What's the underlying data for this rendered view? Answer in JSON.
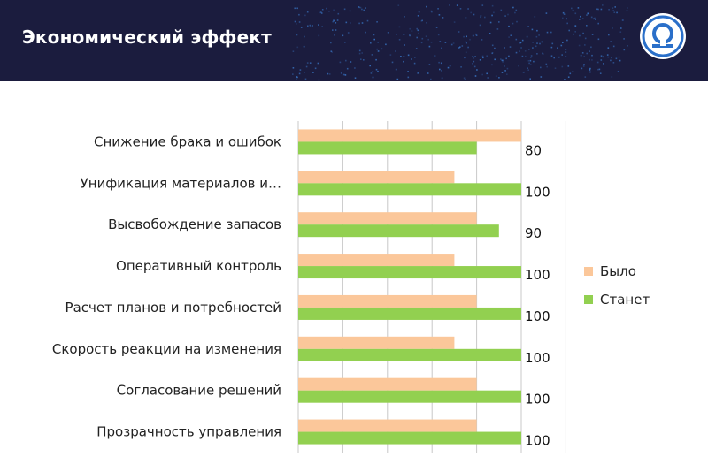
{
  "header": {
    "title": "Экономический эффект"
  },
  "colors": {
    "banner": "#1b1c3e",
    "dot": "#3a78c9",
    "before": "#fbc79a",
    "after": "#92d050",
    "grid": "#c8c8c8"
  },
  "chart_data": {
    "type": "bar",
    "orientation": "horizontal",
    "categories": [
      "Снижение брака и ошибок",
      "Унификация материалов и…",
      "Высвобождение запасов",
      "Оперативный контроль",
      "Расчет планов и потребностей",
      "Скорость реакции на изменения",
      "Согласование решений",
      "Прозрачность управления"
    ],
    "series": [
      {
        "name": "Было",
        "values": [
          100,
          70,
          80,
          70,
          80,
          70,
          80,
          80
        ]
      },
      {
        "name": "Станет",
        "values": [
          80,
          100,
          90,
          100,
          100,
          100,
          100,
          100
        ]
      }
    ],
    "data_labels": [
      "80",
      "100",
      "90",
      "100",
      "100",
      "100",
      "100",
      "100"
    ],
    "xlim": [
      0,
      120
    ],
    "grid": true,
    "legend": "right"
  }
}
